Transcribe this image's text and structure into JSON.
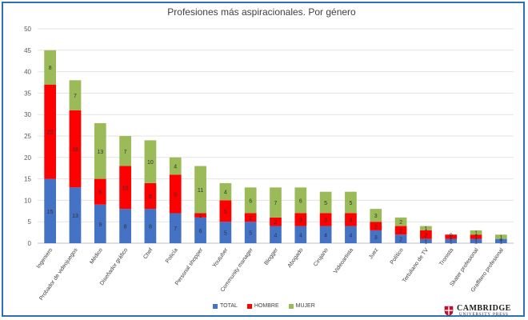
{
  "chart_data": {
    "type": "bar",
    "stacked": true,
    "title": "Profesiones más aspiracionales. Por género",
    "xlabel": "",
    "ylabel": "",
    "ylim": [
      0,
      50
    ],
    "yticks": [
      0,
      5,
      10,
      15,
      20,
      25,
      30,
      35,
      40,
      45,
      50
    ],
    "grid": true,
    "legend_position": "bottom",
    "categories": [
      "Ingeniero",
      "Probador de videojuegos",
      "Médico",
      "Diseñador gráfico",
      "Chef",
      "Policía",
      "Personal shopper",
      "Youtuber",
      "Community manager",
      "Blogger",
      "Abogado",
      "Cirujano",
      "Videoartista",
      "Juez",
      "Político",
      "Tertuliano de TV",
      "Tronista",
      "Skater profesional",
      "Graffitero profesional"
    ],
    "series": [
      {
        "name": "TOTAL",
        "color": "#4472c4",
        "values": [
          15,
          13,
          9,
          8,
          8,
          7,
          6,
          5,
          5,
          4,
          4,
          4,
          4,
          3,
          2,
          1,
          1,
          1,
          1
        ]
      },
      {
        "name": "HOMBRE",
        "color": "#ff0000",
        "values": [
          22,
          18,
          6,
          10,
          6,
          9,
          1,
          5,
          2,
          2,
          3,
          3,
          3,
          2,
          2,
          2,
          1,
          1,
          0
        ]
      },
      {
        "name": "MUJER",
        "color": "#9bbb59",
        "values": [
          8,
          7,
          13,
          7,
          10,
          4,
          11,
          4,
          6,
          7,
          6,
          5,
          5,
          3,
          2,
          1,
          0,
          1,
          1
        ]
      }
    ]
  },
  "logo": {
    "main": "CAMBRIDGE",
    "sub": "UNIVERSITY PRESS"
  }
}
